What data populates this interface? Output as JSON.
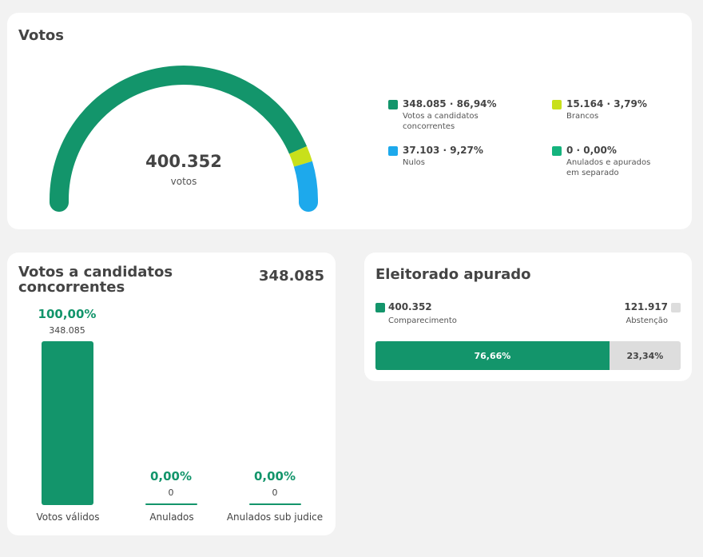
{
  "votos": {
    "title": "Votos",
    "total": "400.352",
    "total_label": "votos",
    "legend": [
      {
        "value": "348.085 · 86,94%",
        "label": "Votos a candidatos concorrentes",
        "color": "#13956b"
      },
      {
        "value": "15.164 · 3,79%",
        "label": "Brancos",
        "color": "#c8e01b"
      },
      {
        "value": "37.103 · 9,27%",
        "label": "Nulos",
        "color": "#1da9ec"
      },
      {
        "value": "0 · 0,00%",
        "label": "Anulados e apurados em separado",
        "color": "#14b37d"
      }
    ]
  },
  "candidatos": {
    "title_line1": "Votos a candidatos",
    "title_line2": "concorrentes",
    "total": "348.085",
    "bars": [
      {
        "pct": "100,00%",
        "count": "348.085",
        "label": "Votos válidos",
        "share": 1.0
      },
      {
        "pct": "0,00%",
        "count": "0",
        "label": "Anulados",
        "share": 0.0
      },
      {
        "pct": "0,00%",
        "count": "0",
        "label": "Anulados sub judice",
        "share": 0.0
      }
    ]
  },
  "eleitorado": {
    "title": "Eleitorado apurado",
    "comparecimento_value": "400.352",
    "comparecimento_label": "Comparecimento",
    "abstencao_value": "121.917",
    "abstencao_label": "Abstenção",
    "comparecimento_pct": "76,66%",
    "abstencao_pct": "23,34%",
    "comparecimento_share": 0.7666,
    "colors": {
      "comparecimento": "#13956b",
      "abstencao": "#dddddd"
    }
  },
  "chart_data": [
    {
      "type": "pie",
      "variant": "semicircle-gauge",
      "categories": [
        "Votos a candidatos concorrentes",
        "Brancos",
        "Nulos",
        "Anulados e apurados em separado"
      ],
      "values": [
        348085,
        15164,
        37103,
        0
      ],
      "percents": [
        86.94,
        3.79,
        9.27,
        0.0
      ],
      "colors": [
        "#13956b",
        "#c8e01b",
        "#1da9ec",
        "#14b37d"
      ],
      "title": "Votos"
    },
    {
      "type": "bar",
      "categories": [
        "Votos válidos",
        "Anulados",
        "Anulados sub judice"
      ],
      "values": [
        348085,
        0,
        0
      ],
      "percents": [
        100.0,
        0.0,
        0.0
      ],
      "title": "Votos a candidatos concorrentes"
    },
    {
      "type": "bar",
      "variant": "stacked-horizontal",
      "categories": [
        "Comparecimento",
        "Abstenção"
      ],
      "values": [
        400352,
        121917
      ],
      "percents": [
        76.66,
        23.34
      ],
      "title": "Eleitorado apurado"
    }
  ]
}
